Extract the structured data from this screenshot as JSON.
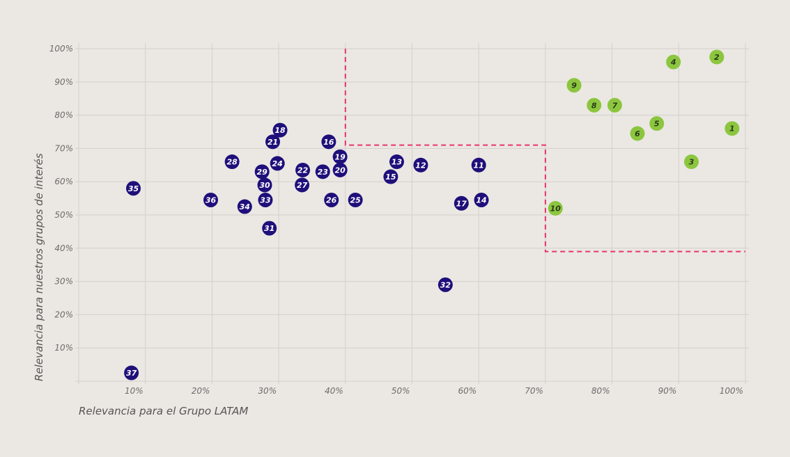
{
  "chart_data": {
    "type": "scatter",
    "xlabel": "Relevancia para el Grupo LATAM",
    "ylabel": "Relevancia para nuestros grupos de interés",
    "xlim": [
      0,
      100
    ],
    "ylim": [
      0,
      100
    ],
    "x_ticks": [
      "10%",
      "20%",
      "30%",
      "40%",
      "50%",
      "60%",
      "70%",
      "80%",
      "90%",
      "100%"
    ],
    "y_ticks": [
      "10%",
      "20%",
      "30%",
      "40%",
      "50%",
      "60%",
      "70%",
      "80%",
      "90%",
      "100%"
    ],
    "grid": true,
    "colors": {
      "group_a": "#1f0f7a",
      "group_b": "#8cc63f",
      "threshold": "#e8336b",
      "grid": "#d3d0cb"
    },
    "threshold_path": [
      [
        40,
        100
      ],
      [
        40,
        71
      ],
      [
        70,
        71
      ],
      [
        70,
        39
      ],
      [
        100,
        39
      ]
    ],
    "points": [
      {
        "label": "1",
        "x": 98,
        "y": 76,
        "group": "group_b"
      },
      {
        "label": "2",
        "x": 95.7,
        "y": 97.5,
        "group": "group_b"
      },
      {
        "label": "3",
        "x": 91.9,
        "y": 66,
        "group": "group_b"
      },
      {
        "label": "4",
        "x": 89.2,
        "y": 96,
        "group": "group_b"
      },
      {
        "label": "5",
        "x": 86.7,
        "y": 77.5,
        "group": "group_b"
      },
      {
        "label": "6",
        "x": 83.8,
        "y": 74.5,
        "group": "group_b"
      },
      {
        "label": "7",
        "x": 80.4,
        "y": 83,
        "group": "group_b"
      },
      {
        "label": "8",
        "x": 77.3,
        "y": 83,
        "group": "group_b"
      },
      {
        "label": "9",
        "x": 74.3,
        "y": 89,
        "group": "group_b"
      },
      {
        "label": "10",
        "x": 71.5,
        "y": 52,
        "group": "group_b"
      },
      {
        "label": "11",
        "x": 60,
        "y": 65,
        "group": "group_a"
      },
      {
        "label": "12",
        "x": 51.3,
        "y": 65,
        "group": "group_a"
      },
      {
        "label": "13",
        "x": 47.7,
        "y": 66,
        "group": "group_a"
      },
      {
        "label": "14",
        "x": 60.4,
        "y": 54.5,
        "group": "group_a"
      },
      {
        "label": "15",
        "x": 46.8,
        "y": 61.5,
        "group": "group_a"
      },
      {
        "label": "16",
        "x": 37.5,
        "y": 72,
        "group": "group_a"
      },
      {
        "label": "17",
        "x": 57.4,
        "y": 53.5,
        "group": "group_a"
      },
      {
        "label": "18",
        "x": 30.2,
        "y": 75.5,
        "group": "group_a"
      },
      {
        "label": "19",
        "x": 39.2,
        "y": 67.5,
        "group": "group_a"
      },
      {
        "label": "20",
        "x": 39.2,
        "y": 63.5,
        "group": "group_a"
      },
      {
        "label": "21",
        "x": 29.1,
        "y": 72,
        "group": "group_a"
      },
      {
        "label": "22",
        "x": 33.6,
        "y": 63.5,
        "group": "group_a"
      },
      {
        "label": "23",
        "x": 36.6,
        "y": 63,
        "group": "group_a"
      },
      {
        "label": "24",
        "x": 29.8,
        "y": 65.5,
        "group": "group_a"
      },
      {
        "label": "25",
        "x": 41.5,
        "y": 54.5,
        "group": "group_a"
      },
      {
        "label": "26",
        "x": 37.9,
        "y": 54.5,
        "group": "group_a"
      },
      {
        "label": "27",
        "x": 33.5,
        "y": 59,
        "group": "group_a"
      },
      {
        "label": "28",
        "x": 23,
        "y": 66,
        "group": "group_a"
      },
      {
        "label": "29",
        "x": 27.5,
        "y": 63,
        "group": "group_a"
      },
      {
        "label": "30",
        "x": 27.9,
        "y": 59,
        "group": "group_a"
      },
      {
        "label": "31",
        "x": 28.6,
        "y": 46,
        "group": "group_a"
      },
      {
        "label": "32",
        "x": 55,
        "y": 29,
        "group": "group_a"
      },
      {
        "label": "33",
        "x": 28,
        "y": 54.5,
        "group": "group_a"
      },
      {
        "label": "34",
        "x": 24.9,
        "y": 52.5,
        "group": "group_a"
      },
      {
        "label": "35",
        "x": 8.2,
        "y": 58,
        "group": "group_a"
      },
      {
        "label": "36",
        "x": 19.8,
        "y": 54.5,
        "group": "group_a"
      },
      {
        "label": "37",
        "x": 7.9,
        "y": 2.5,
        "group": "group_a"
      }
    ]
  }
}
